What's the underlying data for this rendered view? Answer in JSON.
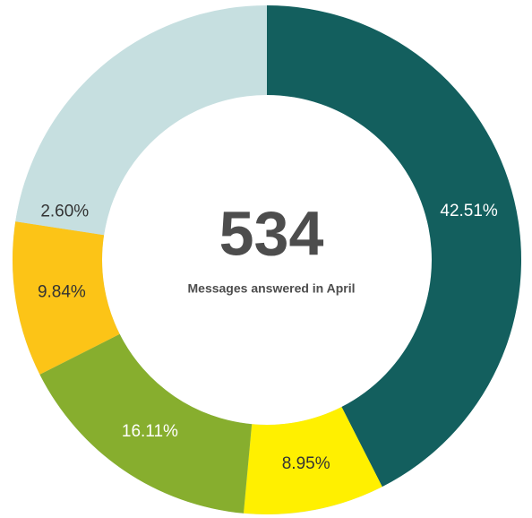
{
  "chart_data": {
    "type": "donut",
    "center_value": 534,
    "center_label": "Messages answered in April",
    "categories": [
      null,
      null,
      null,
      null,
      null
    ],
    "values": [
      42.51,
      8.95,
      16.11,
      9.84,
      2.6
    ],
    "value_labels": [
      "42.51%",
      "8.95%",
      "16.11%",
      "9.84%",
      "2.60%"
    ],
    "colors": [
      "#135f5e",
      "#fff000",
      "#87ae2e",
      "#fcc417",
      "#c6dfe0"
    ],
    "track_color": "#c6dfe0"
  }
}
